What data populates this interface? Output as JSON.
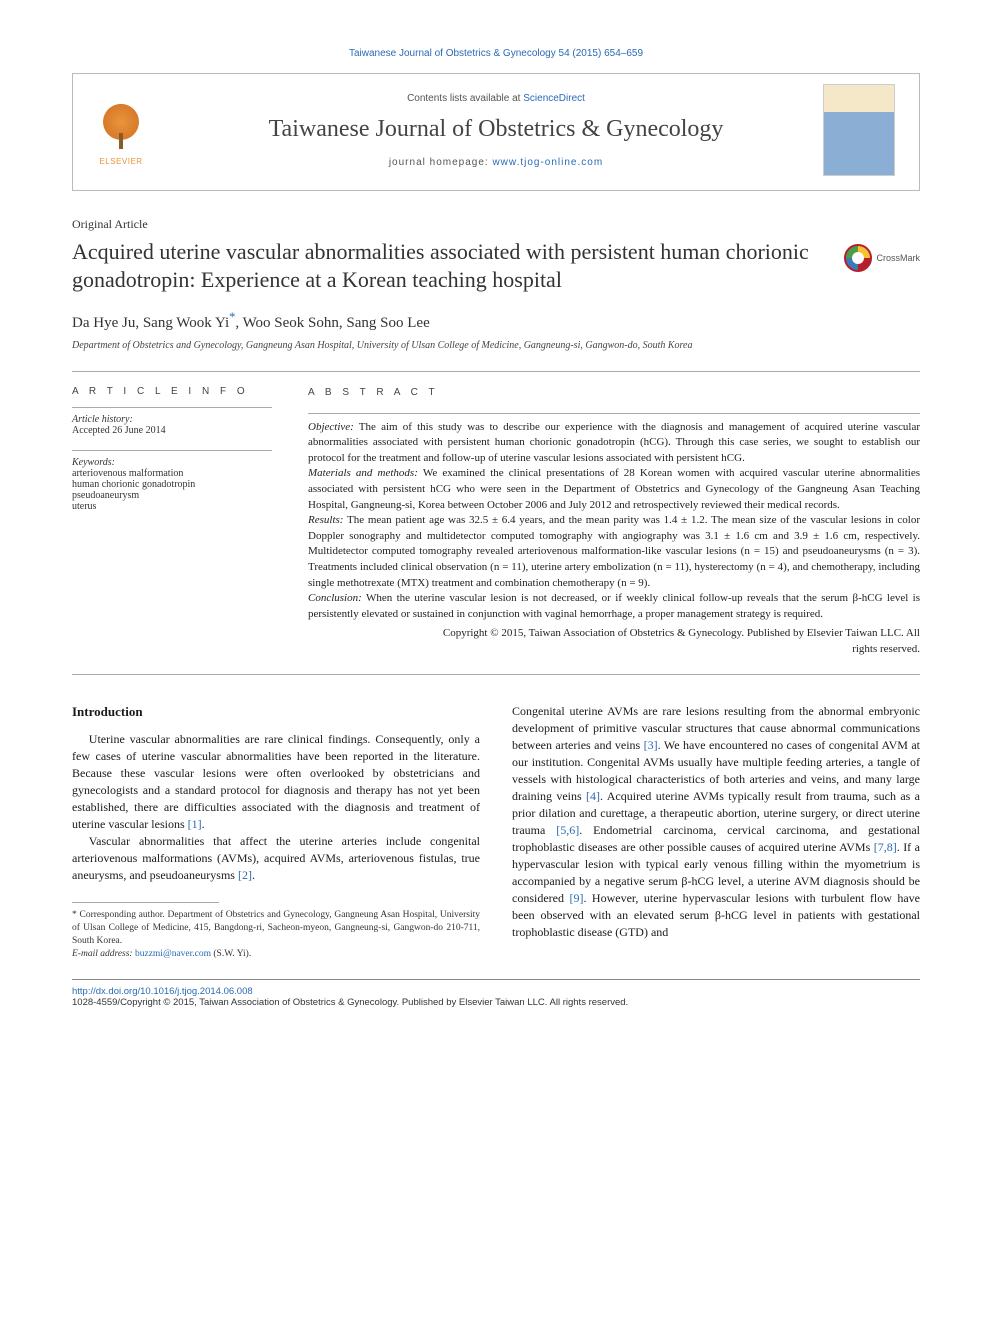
{
  "journal_ref": "Taiwanese Journal of Obstetrics & Gynecology 54 (2015) 654–659",
  "header": {
    "contents_prefix": "Contents lists available at ",
    "contents_link": "ScienceDirect",
    "journal_title": "Taiwanese Journal of Obstetrics & Gynecology",
    "homepage_prefix": "journal homepage: ",
    "homepage_link": "www.tjog-online.com",
    "elsevier_label": "ELSEVIER"
  },
  "crossmark_label": "CrossMark",
  "article_type": "Original Article",
  "article_title": "Acquired uterine vascular abnormalities associated with persistent human chorionic gonadotropin: Experience at a Korean teaching hospital",
  "authors": "Da Hye Ju, Sang Wook Yi",
  "authors_rest": ", Woo Seok Sohn, Sang Soo Lee",
  "affiliation": "Department of Obstetrics and Gynecology, Gangneung Asan Hospital, University of Ulsan College of Medicine, Gangneung-si, Gangwon-do, South Korea",
  "info": {
    "heading": "A R T I C L E   I N F O",
    "history_label": "Article history:",
    "history_value": "Accepted 26 June 2014",
    "keywords_label": "Keywords:",
    "keywords": [
      "arteriovenous malformation",
      "human chorionic gonadotropin",
      "pseudoaneurysm",
      "uterus"
    ]
  },
  "abstract": {
    "heading": "A B S T R A C T",
    "objective_label": "Objective:",
    "objective": " The aim of this study was to describe our experience with the diagnosis and management of acquired uterine vascular abnormalities associated with persistent human chorionic gonadotropin (hCG). Through this case series, we sought to establish our protocol for the treatment and follow-up of uterine vascular lesions associated with persistent hCG.",
    "methods_label": "Materials and methods:",
    "methods": " We examined the clinical presentations of 28 Korean women with acquired vascular uterine abnormalities associated with persistent hCG who were seen in the Department of Obstetrics and Gynecology of the Gangneung Asan Teaching Hospital, Gangneung-si, Korea between October 2006 and July 2012 and retrospectively reviewed their medical records.",
    "results_label": "Results:",
    "results": " The mean patient age was 32.5 ± 6.4 years, and the mean parity was 1.4 ± 1.2. The mean size of the vascular lesions in color Doppler sonography and multidetector computed tomography with angiography was 3.1 ± 1.6 cm and 3.9 ± 1.6 cm, respectively. Multidetector computed tomography revealed arteriovenous malformation-like vascular lesions (n = 15) and pseudoaneurysms (n = 3). Treatments included clinical observation (n = 11), uterine artery embolization (n = 11), hysterectomy (n = 4), and chemotherapy, including single methotrexate (MTX) treatment and combination chemotherapy (n = 9).",
    "conclusion_label": "Conclusion:",
    "conclusion": " When the uterine vascular lesion is not decreased, or if weekly clinical follow-up reveals that the serum β-hCG level is persistently elevated or sustained in conjunction with vaginal hemorrhage, a proper management strategy is required.",
    "copyright1": "Copyright © 2015, Taiwan Association of Obstetrics & Gynecology. Published by Elsevier Taiwan LLC. All",
    "copyright2": "rights reserved."
  },
  "body": {
    "intro_heading": "Introduction",
    "p1": "Uterine vascular abnormalities are rare clinical findings. Consequently, only a few cases of uterine vascular abnormalities have been reported in the literature. Because these vascular lesions were often overlooked by obstetricians and gynecologists and a standard protocol for diagnosis and therapy has not yet been established, there are difficulties associated with the diagnosis and treatment of uterine vascular lesions ",
    "r1": "[1]",
    "p1_end": ".",
    "p2": "Vascular abnormalities that affect the uterine arteries include congenital arteriovenous malformations (AVMs), acquired AVMs, arteriovenous fistulas, true aneurysms, and pseudoaneurysms ",
    "r2": "[2]",
    "p2_end": ".",
    "p3a": "Congenital uterine AVMs are rare lesions resulting from the abnormal embryonic development of primitive vascular structures that cause abnormal communications between arteries and veins ",
    "r3": "[3]",
    "p3b": ". We have encountered no cases of congenital AVM at our institution. Congenital AVMs usually have multiple feeding arteries, a tangle of vessels with histological characteristics of both arteries and veins, and many large draining veins ",
    "r4": "[4]",
    "p3c": ". Acquired uterine AVMs typically result from trauma, such as a prior dilation and curettage, a therapeutic abortion, uterine surgery, or direct uterine trauma ",
    "r56": "[5,6]",
    "p3d": ". Endometrial carcinoma, cervical carcinoma, and gestational trophoblastic diseases are other possible causes of acquired uterine AVMs ",
    "r78": "[7,8]",
    "p3e": ". If a hypervascular lesion with typical early venous filling within the myometrium is accompanied by a negative serum β-hCG level, a uterine AVM diagnosis should be considered ",
    "r9": "[9]",
    "p3f": ". However, uterine hypervascular lesions with turbulent flow have been observed with an elevated serum β-hCG level in patients with gestational trophoblastic disease (GTD) and"
  },
  "footnotes": {
    "corr": "* Corresponding author. Department of Obstetrics and Gynecology, Gangneung Asan Hospital, University of Ulsan College of Medicine, 415, Bangdong-ri, Sacheon-myeon, Gangneung-si, Gangwon-do 210-711, South Korea.",
    "email_label": "E-mail address:",
    "email": "buzzmi@naver.com",
    "email_who": " (S.W. Yi)."
  },
  "bottom": {
    "doi": "http://dx.doi.org/10.1016/j.tjog.2014.06.008",
    "issn_line": "1028-4559/Copyright © 2015, Taiwan Association of Obstetrics & Gynecology. Published by Elsevier Taiwan LLC. All rights reserved."
  },
  "colors": {
    "link": "#2a6ab5",
    "elsevier_orange": "#e8943a",
    "text": "#1a1a1a",
    "rule": "#aaaaaa"
  }
}
